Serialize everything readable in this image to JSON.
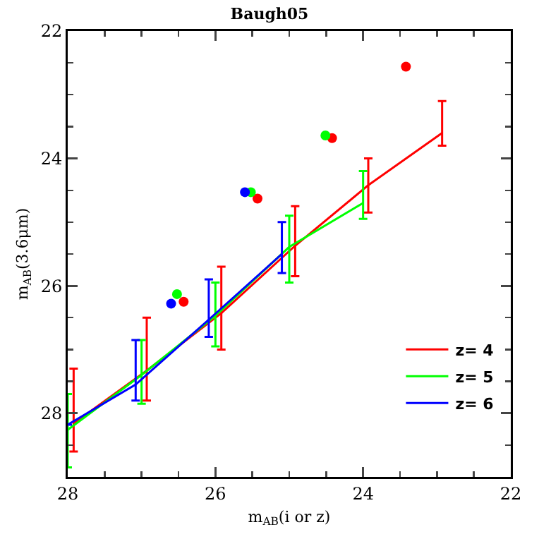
{
  "chart_data": {
    "type": "line",
    "title": "Baugh05",
    "xlabel": "m$_{AB}$(i or z)",
    "ylabel": "m$_{AB}$(3.6μm)",
    "xlim": [
      28,
      22
    ],
    "xticks": [
      28,
      26,
      24,
      22
    ],
    "ylim": [
      29,
      22
    ],
    "yticks": [
      28,
      26,
      24,
      22
    ],
    "grid": false,
    "legend": "bottom right",
    "series": [
      {
        "name": "z= 4",
        "color": "#ff0000",
        "type": "line",
        "marker": "none",
        "x": [
          27.92,
          26.93,
          25.92,
          24.92,
          23.93,
          22.93
        ],
        "values": [
          28.16,
          27.33,
          26.43,
          25.37,
          24.42,
          23.6
        ],
        "errors": [
          [
            27.3,
            28.6
          ],
          [
            26.5,
            27.8
          ],
          [
            25.7,
            27.0
          ],
          [
            24.75,
            25.85
          ],
          [
            24.0,
            24.85
          ],
          [
            23.1,
            23.8
          ]
        ]
      },
      {
        "name": "z= 5",
        "color": "#00ff00",
        "type": "line",
        "marker": "none",
        "x": [
          28.0,
          27.0,
          26.0,
          25.0,
          24.0
        ],
        "values": [
          28.26,
          27.4,
          26.47,
          25.39,
          24.7
        ],
        "errors": [
          [
            27.7,
            28.85
          ],
          [
            26.85,
            27.85
          ],
          [
            25.95,
            26.95
          ],
          [
            24.9,
            25.95
          ],
          [
            24.2,
            24.95
          ]
        ]
      },
      {
        "name": "z= 6",
        "color": "#0000ff",
        "type": "line",
        "marker": "none",
        "x": [
          28.0,
          27.08,
          26.09,
          25.1
        ],
        "values": [
          28.18,
          27.55,
          26.53,
          25.5
        ],
        "errors": [
          null,
          [
            26.85,
            27.8
          ],
          [
            25.9,
            26.8
          ],
          [
            25.0,
            25.8
          ]
        ]
      },
      {
        "color": "#ff0000",
        "type": "scatter",
        "marker": "circle",
        "x": [
          23.42,
          24.42,
          25.43,
          26.43
        ],
        "values": [
          22.56,
          23.68,
          24.63,
          26.25
        ]
      },
      {
        "color": "#00ff00",
        "type": "scatter",
        "marker": "circle",
        "x": [
          24.51,
          25.52,
          26.52
        ],
        "values": [
          23.64,
          24.53,
          26.13
        ]
      },
      {
        "color": "#0000ff",
        "type": "scatter",
        "marker": "circle",
        "x": [
          25.6,
          26.6
        ],
        "values": [
          24.53,
          26.28
        ]
      }
    ]
  }
}
